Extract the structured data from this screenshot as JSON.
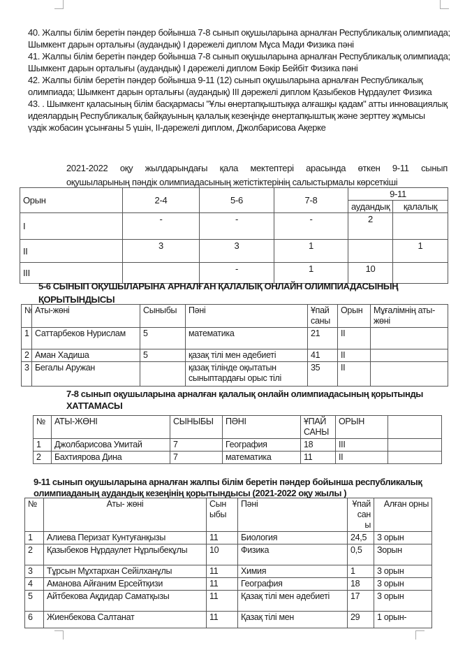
{
  "paragraphs": [
    "40. Жалпы білім беретін пәндер бойынша 7-8 сынып оқушыларына арналған Республикалық олимпиада;",
    "Шымкент дарын орталығы (аудандық) I дәрежелі диплом  Мұса Мади Физика пәні",
    "41. Жалпы білім беретін пәндер бойынша 7-8 сынып оқушыларына арналған Республикалық олимпиада;",
    "Шымкент дарын орталығы (аудандық) I дәрежелі диплом  Бәкір Бейбіт  Физика пәні",
    "42. Жалпы білім беретін пәндер бойынша 9-11 (12) сынып оқушыларына арналған Республикалық",
    "олимпиада; Шымкент дарын орталығы (аудандық) III дәрежелі диплом  Қазыбеков Нұрдаулет  Физика",
    "43. . Шымкент қаласының білім басқармасы \"Ұлы өнертапқыштыққа алғашқы қадам\" атты инновациялық",
    " идеялардың Республикалық байқауының қалалық кезеңінде өнертапқыштық және зерттеу жұмысы",
    "үздік жобасин ұсынғаны 5 үшін, II-дәрежелі диплом, Джолбарисова Ақерке"
  ],
  "caption": {
    "line1": "2021-2022 оқу жылдарындағы қала мектептері арасында өткен 9-11 сынып",
    "line2": "оқушыларының пәндік олимпиадасының жетістіктерінің салыстырмалы көрсеткіші"
  },
  "table1": {
    "headers": [
      "Орын",
      "2-4",
      "5-6",
      "7-8",
      "9-11",
      "аудандық",
      "қалалық"
    ],
    "rows": [
      [
        "I",
        "-",
        "-",
        "-",
        "2",
        ""
      ],
      [
        "II",
        "3",
        "3",
        "1",
        "",
        "1"
      ],
      [
        "III",
        "",
        "-",
        "1",
        "10",
        ""
      ]
    ]
  },
  "section2": {
    "title1": "5-6 СЫНЫП ОҚУШЫЛАРЫНА АРНАЛҒАН ҚАЛАЛЫҚ ОНЛАЙН ОЛИМПИАДАСЫНЫҢ",
    "title2": "ҚОРЫТЫНДЫСЫ",
    "headers": [
      "№",
      "Аты-жөні",
      "Сыныбы",
      "Пәні",
      "Ұпай саны",
      "Орын",
      "Мұғалімнің аты- жөні"
    ],
    "rows": [
      [
        "1",
        "Саттарбеков Нурислам",
        "5",
        "математика",
        "21",
        "II",
        ""
      ],
      [
        "2",
        "Аман Хадиша",
        "5",
        "қазақ тілі мен әдебиеті",
        "41",
        "II",
        ""
      ],
      [
        "3",
        "Бегалы Аружан",
        "",
        "қазақ тілінде оқытатын сыныптардағы орыс тілі",
        "35",
        "II",
        ""
      ]
    ]
  },
  "section3": {
    "title1": "7-8 сынып оқушыларына арналған қалалық онлайн олимпиадасының қорытынды",
    "title2": "ХАТТАМАСЫ",
    "headers": [
      "№",
      "АТЫ-ЖӨНІ",
      "СЫНЫБЫ",
      "ПӘНІ",
      "ҰПАЙ САНЫ",
      "ОРЫН",
      ""
    ],
    "rows": [
      [
        "1",
        "Джолбарисова Умитай",
        "7",
        "География",
        "18",
        "III",
        ""
      ],
      [
        "2",
        "Бахтиярова Дина",
        "7",
        "математика",
        "11",
        "II",
        ""
      ]
    ]
  },
  "section4": {
    "title1": "9-11 сынып оқушыларына арналған жалпы білім беретін пәндер бойынша республикалық",
    "title2": "олимпиаданың аудандық кезеңінің қорытындысы   (2021-2022 оқу жылы )",
    "headers": [
      "№",
      "Аты- жөні",
      "Сын ыбы",
      "Пәні",
      "Ұпай сан ы",
      "Алған орны"
    ],
    "rows": [
      [
        "1",
        "Алиева Перизат Кунтуғанқызы",
        "11",
        "Биология",
        "24,5",
        "3 орын"
      ],
      [
        "2",
        "Қазыбеков  Нұрдаулет Нұрлыбекұлы",
        "10",
        "Физика",
        "0,5",
        "Зорын"
      ],
      [
        "3",
        "Тұрсын Мұхтархан Сейілханұлы",
        "11",
        "Химия",
        "1",
        "3 орын"
      ],
      [
        "4",
        "Аманова Айғаним Ерсейтқизи",
        "11",
        "География",
        "18",
        "3 орын"
      ],
      [
        "5",
        "Айтбекова Ақдидар Саматқызы",
        "11",
        "Қазақ тілі мен әдебиеті",
        "17",
        "3 орын"
      ],
      [
        "6",
        "Жиенбекова Салтанат",
        "11",
        "Қазақ тілі мен",
        "29",
        "1 орын-"
      ]
    ]
  }
}
